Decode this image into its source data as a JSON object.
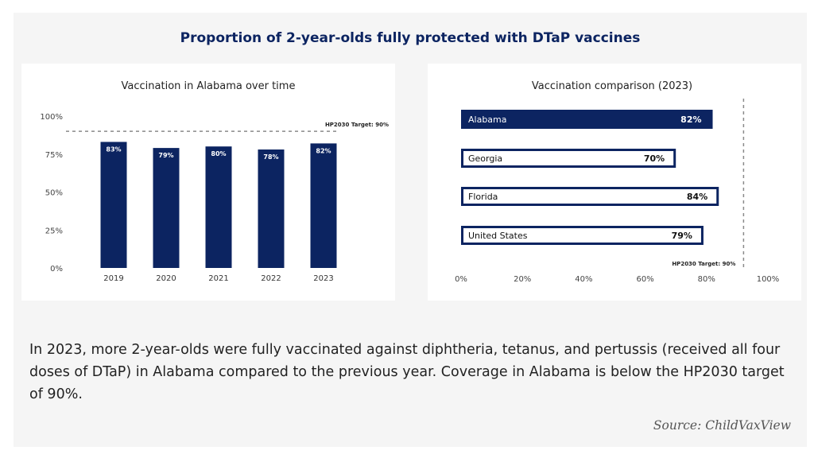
{
  "header": {
    "title": "Proportion of 2-year-olds fully protected with DTaP vaccines"
  },
  "summary": "In 2023, more 2-year-olds were fully vaccinated against diphtheria, tetanus, and pertussis (received all four doses of DTaP) in Alabama compared to the previous year. Coverage in Alabama is below the HP2030 target of 90%.",
  "source": "Source: ChildVaxView",
  "colors": {
    "navy": "#0c2461",
    "white": "#ffffff",
    "target_line": "#8a8a8a"
  },
  "chart_data": [
    {
      "type": "bar",
      "title": "Vaccination in Alabama over time",
      "categories": [
        "2019",
        "2020",
        "2021",
        "2022",
        "2023"
      ],
      "values": [
        83,
        79,
        80,
        78,
        82
      ],
      "value_labels": [
        "83%",
        "79%",
        "80%",
        "78%",
        "82%"
      ],
      "ylim": [
        0,
        100
      ],
      "yticks": [
        0,
        25,
        50,
        75,
        100
      ],
      "ytick_labels": [
        "0%",
        "25%",
        "50%",
        "75%",
        "100%"
      ],
      "target": {
        "value": 90,
        "label": "HP2030 Target: 90%"
      },
      "grid": false
    },
    {
      "type": "bar",
      "orientation": "horizontal",
      "title": "Vaccination comparison (2023)",
      "categories": [
        "Alabama",
        "Georgia",
        "Florida",
        "United States"
      ],
      "values": [
        82,
        70,
        84,
        79
      ],
      "value_labels": [
        "82%",
        "70%",
        "84%",
        "79%"
      ],
      "highlight": "Alabama",
      "xlim": [
        0,
        100
      ],
      "xticks": [
        0,
        20,
        40,
        60,
        80,
        100
      ],
      "xtick_labels": [
        "0%",
        "20%",
        "40%",
        "60%",
        "80%",
        "100%"
      ],
      "target": {
        "value": 90,
        "label": "HP2030 Target: 90%"
      },
      "grid": false
    }
  ]
}
